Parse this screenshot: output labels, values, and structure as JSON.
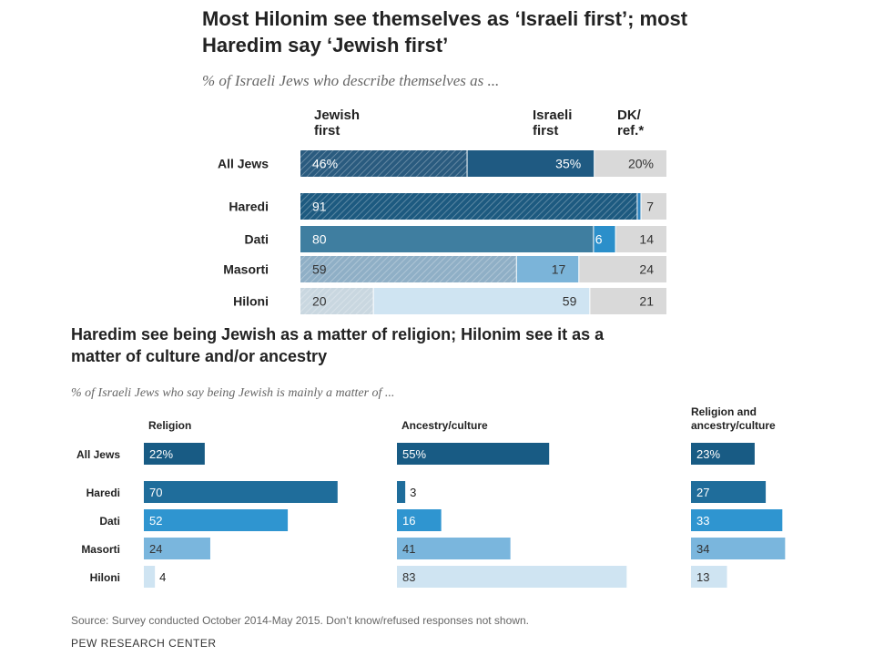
{
  "chart_data": [
    {
      "type": "bar",
      "stacked": true,
      "orientation": "horizontal",
      "title": "Most Hilonim see themselves as ‘Israeli first’; most Haredim say ‘Jewish first’",
      "subtitle": "% of Israeli Jews who describe themselves as ...",
      "categories": [
        "All Jews",
        "Haredi",
        "Dati",
        "Masorti",
        "Hiloni"
      ],
      "series": [
        {
          "name": "Jewish first",
          "label": "Jewish\nfirst",
          "values": [
            46,
            91,
            80,
            59,
            20
          ]
        },
        {
          "name": "Israeli first",
          "label": "Israeli\nfirst",
          "values": [
            35,
            1,
            6,
            17,
            59
          ]
        },
        {
          "name": "DK/ref.*",
          "label": "DK/\nref.*",
          "values": [
            20,
            7,
            14,
            24,
            21
          ]
        }
      ],
      "value_labels": [
        [
          "46%",
          "35%",
          "20%"
        ],
        [
          "91",
          "",
          "7"
        ],
        [
          "80",
          "6",
          "14"
        ],
        [
          "59",
          "17",
          "24"
        ],
        [
          "20",
          "59",
          "21"
        ]
      ],
      "colors": {
        "jewish_first": [
          "#2a5b7f",
          "#1d5a80",
          "#3f7ea0",
          "#8fafc6",
          "#c9d7e0"
        ],
        "jewish_first_hatched": [
          true,
          true,
          false,
          true,
          true
        ],
        "israeli_first": [
          "#1f5a82",
          "#2f86c2",
          "#2b8fca",
          "#7bb4d9",
          "#cfe4f2"
        ],
        "dk": "#d9d9d9"
      },
      "grid": false,
      "legend": "column headers above bars"
    },
    {
      "type": "bar",
      "orientation": "horizontal",
      "title": "Haredim see being Jewish as a matter of religion; Hilonim see it as a matter of culture and/or ancestry",
      "subtitle": "% of Israeli Jews who say being Jewish is mainly a matter of ...",
      "categories": [
        "All Jews",
        "Haredi",
        "Dati",
        "Masorti",
        "Hiloni"
      ],
      "series": [
        {
          "name": "Religion",
          "values": [
            22,
            70,
            52,
            24,
            4
          ],
          "labels": [
            "22%",
            "70",
            "52",
            "24",
            "4"
          ]
        },
        {
          "name": "Ancestry/culture",
          "values": [
            55,
            3,
            16,
            41,
            83
          ],
          "labels": [
            "55%",
            "3",
            "16",
            "41",
            "83"
          ]
        },
        {
          "name": "Religion and ancestry/culture",
          "label": "Religion and\nancestry/culture",
          "values": [
            23,
            27,
            33,
            34,
            13
          ],
          "labels": [
            "23%",
            "27",
            "33",
            "34",
            "13"
          ]
        }
      ],
      "colors": [
        "#185b84",
        "#1f6d9b",
        "#2f95d0",
        "#7ab6dd",
        "#cfe4f2"
      ],
      "grid": false
    }
  ],
  "footer": {
    "source": "Source: Survey conducted October 2014-May 2015. Don’t know/refused responses not shown.",
    "brand": "PEW RESEARCH CENTER"
  }
}
